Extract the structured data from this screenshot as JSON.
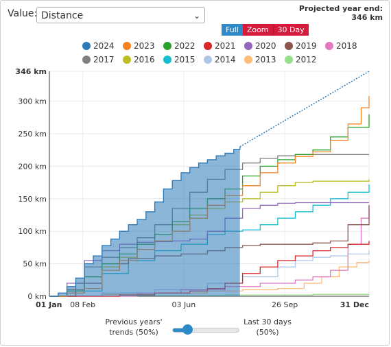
{
  "controls": {
    "value_label": "Value:",
    "value_selected": "Distance",
    "projected_label": "Projected year end:",
    "projected_value": "346 km",
    "range_buttons": [
      "Full",
      "Zoom",
      "30 Day"
    ]
  },
  "slider": {
    "left_label_line1": "Previous years'",
    "left_label_line2": "trends (50%)",
    "right_label_line1": "Last 30 days",
    "right_label_line2": "(50%)",
    "value": 0.5
  },
  "chart_data": {
    "type": "line",
    "ylim": [
      0,
      346
    ],
    "yticks": [
      "0 km",
      "50 km",
      "100 km",
      "150 km",
      "200 km",
      "250 km",
      "300 km",
      "346 km"
    ],
    "ytick_values": [
      0,
      50,
      100,
      150,
      200,
      250,
      300,
      346
    ],
    "xticks": [
      "01 Jan",
      "08 Feb",
      "03 Jun",
      "26 Sep",
      "31 Dec"
    ],
    "xtick_days": [
      0,
      38,
      153,
      268,
      364
    ],
    "grid": true,
    "legend_placement": "top",
    "series": [
      {
        "name": "2024",
        "color": "#2d7ab8",
        "area": true,
        "points": [
          [
            0,
            0
          ],
          [
            10,
            5
          ],
          [
            20,
            15
          ],
          [
            30,
            28
          ],
          [
            40,
            50
          ],
          [
            50,
            62
          ],
          [
            60,
            78
          ],
          [
            70,
            88
          ],
          [
            80,
            100
          ],
          [
            90,
            110
          ],
          [
            100,
            118
          ],
          [
            110,
            130
          ],
          [
            120,
            145
          ],
          [
            130,
            165
          ],
          [
            140,
            178
          ],
          [
            150,
            190
          ],
          [
            160,
            198
          ],
          [
            170,
            205
          ],
          [
            180,
            210
          ],
          [
            190,
            216
          ],
          [
            200,
            220
          ],
          [
            210,
            226
          ],
          [
            217,
            230
          ]
        ],
        "projection": [
          [
            217,
            230
          ],
          [
            364,
            346
          ]
        ]
      },
      {
        "name": "2023",
        "color": "#f5821f",
        "points": [
          [
            0,
            0
          ],
          [
            20,
            5
          ],
          [
            40,
            12
          ],
          [
            60,
            40
          ],
          [
            80,
            55
          ],
          [
            100,
            72
          ],
          [
            120,
            85
          ],
          [
            140,
            100
          ],
          [
            160,
            120
          ],
          [
            180,
            140
          ],
          [
            200,
            155
          ],
          [
            220,
            170
          ],
          [
            240,
            190
          ],
          [
            260,
            205
          ],
          [
            280,
            215
          ],
          [
            300,
            222
          ],
          [
            320,
            240
          ],
          [
            340,
            265
          ],
          [
            355,
            290
          ],
          [
            364,
            308
          ]
        ]
      },
      {
        "name": "2022",
        "color": "#2ca02c",
        "points": [
          [
            0,
            0
          ],
          [
            20,
            8
          ],
          [
            40,
            30
          ],
          [
            60,
            50
          ],
          [
            80,
            65
          ],
          [
            100,
            80
          ],
          [
            120,
            95
          ],
          [
            140,
            115
          ],
          [
            160,
            135
          ],
          [
            180,
            150
          ],
          [
            200,
            165
          ],
          [
            220,
            185
          ],
          [
            240,
            200
          ],
          [
            260,
            210
          ],
          [
            280,
            218
          ],
          [
            300,
            225
          ],
          [
            320,
            245
          ],
          [
            340,
            260
          ],
          [
            364,
            280
          ]
        ]
      },
      {
        "name": "2021",
        "color": "#d62728",
        "points": [
          [
            0,
            0
          ],
          [
            80,
            2
          ],
          [
            120,
            5
          ],
          [
            160,
            8
          ],
          [
            180,
            12
          ],
          [
            200,
            20
          ],
          [
            220,
            35
          ],
          [
            240,
            45
          ],
          [
            260,
            55
          ],
          [
            280,
            62
          ],
          [
            300,
            70
          ],
          [
            320,
            75
          ],
          [
            340,
            80
          ],
          [
            364,
            85
          ]
        ]
      },
      {
        "name": "2020",
        "color": "#9467bd",
        "points": [
          [
            0,
            0
          ],
          [
            20,
            20
          ],
          [
            40,
            55
          ],
          [
            60,
            70
          ],
          [
            80,
            80
          ],
          [
            100,
            83
          ],
          [
            120,
            84
          ],
          [
            140,
            85
          ],
          [
            160,
            88
          ],
          [
            180,
            100
          ],
          [
            200,
            120
          ],
          [
            220,
            135
          ],
          [
            240,
            140
          ],
          [
            260,
            143
          ],
          [
            280,
            144
          ],
          [
            300,
            144
          ],
          [
            364,
            144
          ]
        ]
      },
      {
        "name": "2019",
        "color": "#8c564b",
        "points": [
          [
            0,
            0
          ],
          [
            30,
            20
          ],
          [
            60,
            50
          ],
          [
            90,
            58
          ],
          [
            120,
            62
          ],
          [
            150,
            65
          ],
          [
            180,
            70
          ],
          [
            200,
            75
          ],
          [
            220,
            78
          ],
          [
            240,
            80
          ],
          [
            260,
            80
          ],
          [
            300,
            82
          ],
          [
            320,
            85
          ],
          [
            340,
            110
          ],
          [
            364,
            140
          ]
        ]
      },
      {
        "name": "2018",
        "color": "#e377c2",
        "points": [
          [
            0,
            0
          ],
          [
            100,
            5
          ],
          [
            150,
            10
          ],
          [
            200,
            15
          ],
          [
            240,
            20
          ],
          [
            280,
            25
          ],
          [
            300,
            30
          ],
          [
            320,
            40
          ],
          [
            340,
            80
          ],
          [
            355,
            120
          ],
          [
            364,
            140
          ]
        ]
      },
      {
        "name": "2017",
        "color": "#7f7f7f",
        "points": [
          [
            0,
            0
          ],
          [
            20,
            10
          ],
          [
            40,
            45
          ],
          [
            60,
            60
          ],
          [
            80,
            75
          ],
          [
            100,
            90
          ],
          [
            120,
            110
          ],
          [
            140,
            135
          ],
          [
            160,
            160
          ],
          [
            180,
            180
          ],
          [
            200,
            195
          ],
          [
            220,
            205
          ],
          [
            240,
            212
          ],
          [
            260,
            216
          ],
          [
            280,
            218
          ],
          [
            300,
            218
          ],
          [
            364,
            218
          ]
        ]
      },
      {
        "name": "2016",
        "color": "#bcbd22",
        "points": [
          [
            0,
            0
          ],
          [
            20,
            10
          ],
          [
            40,
            30
          ],
          [
            60,
            45
          ],
          [
            80,
            60
          ],
          [
            100,
            80
          ],
          [
            120,
            95
          ],
          [
            140,
            110
          ],
          [
            160,
            125
          ],
          [
            180,
            135
          ],
          [
            200,
            145
          ],
          [
            220,
            150
          ],
          [
            240,
            160
          ],
          [
            260,
            170
          ],
          [
            280,
            175
          ],
          [
            300,
            177
          ],
          [
            364,
            180
          ]
        ]
      },
      {
        "name": "2015",
        "color": "#17becf",
        "points": [
          [
            0,
            0
          ],
          [
            30,
            8
          ],
          [
            60,
            35
          ],
          [
            90,
            55
          ],
          [
            120,
            70
          ],
          [
            150,
            80
          ],
          [
            180,
            95
          ],
          [
            200,
            100
          ],
          [
            220,
            102
          ],
          [
            240,
            110
          ],
          [
            260,
            120
          ],
          [
            280,
            130
          ],
          [
            300,
            140
          ],
          [
            320,
            150
          ],
          [
            340,
            160
          ],
          [
            364,
            172
          ]
        ]
      },
      {
        "name": "2014",
        "color": "#aec7e8",
        "points": [
          [
            0,
            0
          ],
          [
            60,
            5
          ],
          [
            120,
            10
          ],
          [
            180,
            20
          ],
          [
            220,
            30
          ],
          [
            260,
            45
          ],
          [
            280,
            55
          ],
          [
            300,
            60
          ],
          [
            320,
            62
          ],
          [
            340,
            65
          ],
          [
            364,
            70
          ]
        ]
      },
      {
        "name": "2013",
        "color": "#ffbb78",
        "points": [
          [
            0,
            0
          ],
          [
            60,
            3
          ],
          [
            120,
            5
          ],
          [
            180,
            8
          ],
          [
            220,
            10
          ],
          [
            260,
            12
          ],
          [
            290,
            20
          ],
          [
            310,
            30
          ],
          [
            330,
            45
          ],
          [
            350,
            52
          ],
          [
            364,
            55
          ]
        ]
      },
      {
        "name": "2012",
        "color": "#98df8a",
        "points": [
          [
            0,
            0
          ],
          [
            100,
            1
          ],
          [
            200,
            2
          ],
          [
            300,
            3
          ],
          [
            364,
            3
          ]
        ]
      }
    ]
  }
}
